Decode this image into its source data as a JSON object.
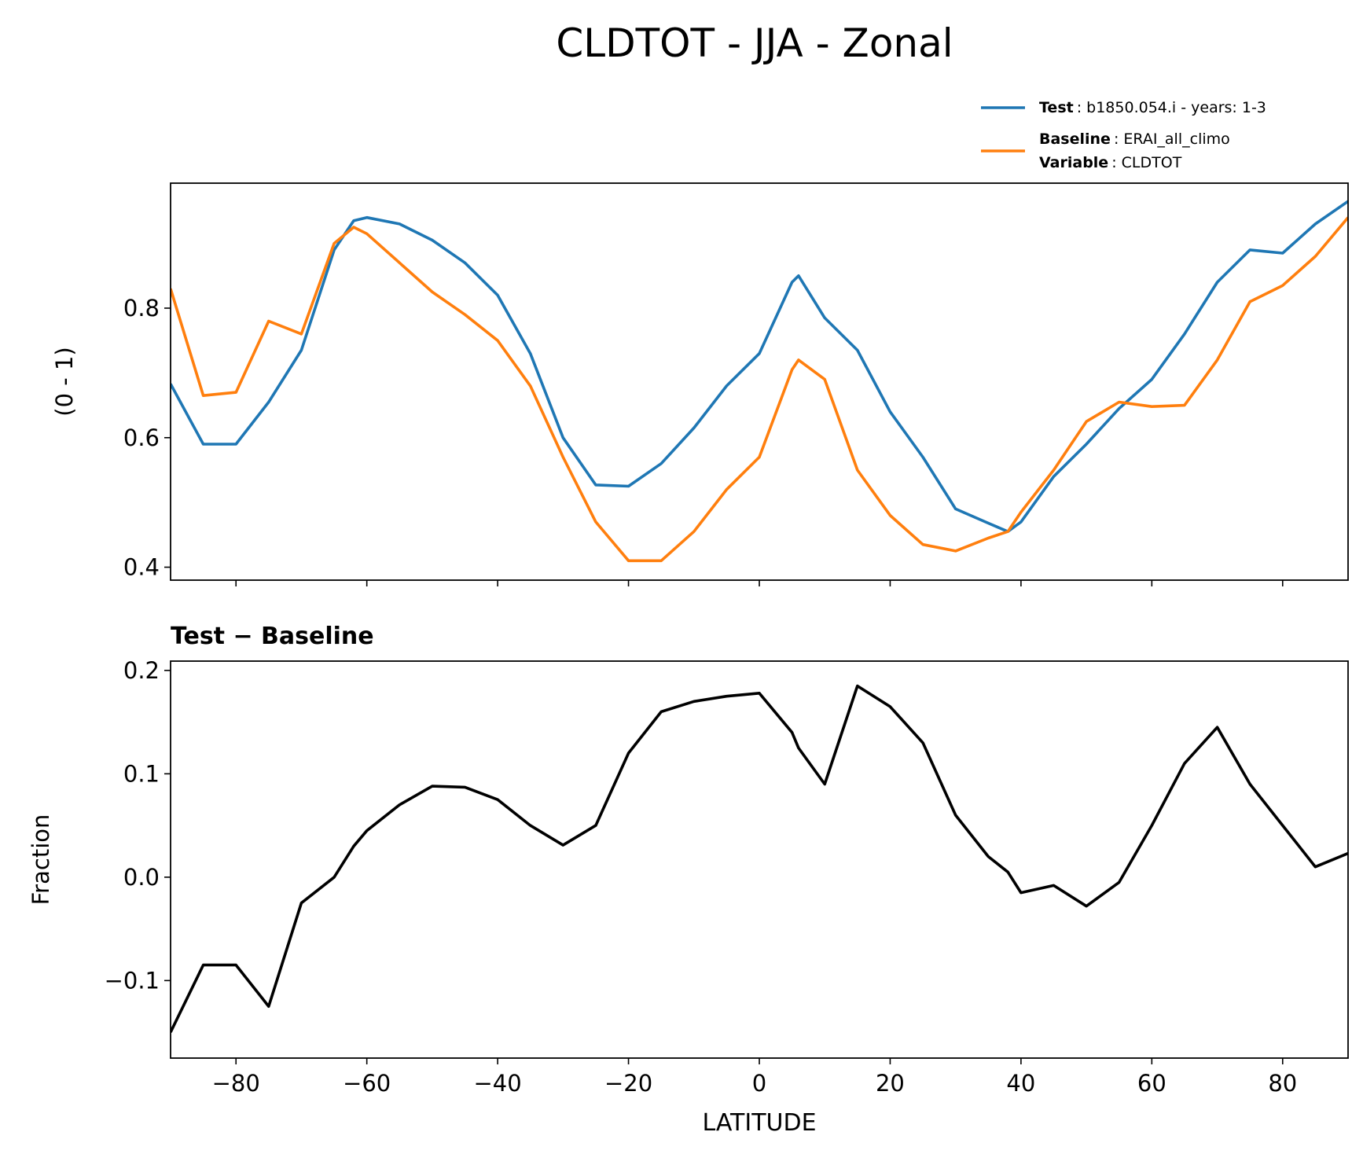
{
  "title": "CLDTOT - JJA - Zonal",
  "legend": {
    "note": {
      "label": "Variable",
      "text": ": CLDTOT"
    }
  },
  "chart_data": [
    {
      "type": "line",
      "ylabel": "(0 - 1)",
      "x": [
        -90,
        -85,
        -80,
        -75,
        -70,
        -65,
        -62,
        -60,
        -55,
        -50,
        -45,
        -40,
        -35,
        -30,
        -25,
        -20,
        -15,
        -10,
        -5,
        0,
        5,
        6,
        10,
        15,
        20,
        25,
        30,
        35,
        38,
        40,
        45,
        50,
        55,
        60,
        65,
        70,
        75,
        80,
        85,
        90
      ],
      "series": [
        {
          "name": "Test",
          "description": ": b1850.054.i - years: 1-3",
          "color": "#1f77b4",
          "values": [
            0.683,
            0.59,
            0.59,
            0.655,
            0.735,
            0.89,
            0.935,
            0.94,
            0.93,
            0.905,
            0.87,
            0.82,
            0.73,
            0.6,
            0.527,
            0.525,
            0.56,
            0.615,
            0.68,
            0.73,
            0.84,
            0.85,
            0.785,
            0.735,
            0.64,
            0.57,
            0.49,
            0.468,
            0.455,
            0.47,
            0.54,
            0.59,
            0.645,
            0.69,
            0.76,
            0.84,
            0.89,
            0.885,
            0.93,
            0.965
          ]
        },
        {
          "name": "Baseline",
          "description": ": ERAI_all_climo",
          "color": "#ff7f0e",
          "values": [
            0.83,
            0.665,
            0.67,
            0.78,
            0.76,
            0.9,
            0.925,
            0.915,
            0.87,
            0.825,
            0.79,
            0.75,
            0.68,
            0.57,
            0.47,
            0.41,
            0.41,
            0.455,
            0.52,
            0.57,
            0.705,
            0.72,
            0.69,
            0.55,
            0.48,
            0.435,
            0.425,
            0.445,
            0.455,
            0.485,
            0.55,
            0.625,
            0.655,
            0.648,
            0.65,
            0.72,
            0.81,
            0.835,
            0.88,
            0.94
          ]
        }
      ],
      "xlim": [
        -90,
        90
      ],
      "ylim": [
        0.38,
        0.993
      ],
      "yticks": [
        0.4,
        0.6,
        0.8
      ]
    },
    {
      "type": "line",
      "title": "Test − Baseline",
      "xlabel": "LATITUDE",
      "ylabel": "Fraction",
      "x": [
        -90,
        -85,
        -80,
        -75,
        -70,
        -65,
        -62,
        -60,
        -55,
        -50,
        -45,
        -40,
        -35,
        -30,
        -25,
        -20,
        -15,
        -10,
        -5,
        0,
        5,
        6,
        10,
        15,
        20,
        25,
        30,
        35,
        38,
        40,
        45,
        50,
        55,
        60,
        65,
        70,
        75,
        80,
        85,
        90
      ],
      "series": [
        {
          "color": "#000000",
          "values": [
            -0.15,
            -0.085,
            -0.085,
            -0.125,
            -0.025,
            0.0,
            0.03,
            0.045,
            0.07,
            0.088,
            0.087,
            0.075,
            0.05,
            0.031,
            0.05,
            0.12,
            0.16,
            0.17,
            0.175,
            0.178,
            0.14,
            0.125,
            0.09,
            0.185,
            0.165,
            0.13,
            0.06,
            0.02,
            0.005,
            -0.015,
            -0.008,
            -0.028,
            -0.005,
            0.05,
            0.11,
            0.145,
            0.09,
            0.05,
            0.01,
            0.023
          ]
        }
      ],
      "xlim": [
        -90,
        90
      ],
      "xticks": [
        {
          "value": -80,
          "label": "−80"
        },
        {
          "value": -60,
          "label": "−60"
        },
        {
          "value": -40,
          "label": "−40"
        },
        {
          "value": -20,
          "label": "−20"
        },
        0,
        20,
        40,
        60,
        80
      ],
      "ylim": [
        -0.175,
        0.209
      ],
      "yticks": [
        {
          "value": -0.1,
          "label": "−0.1"
        },
        {
          "value": 0,
          "label": "0.0"
        },
        0.1,
        0.2
      ]
    }
  ]
}
